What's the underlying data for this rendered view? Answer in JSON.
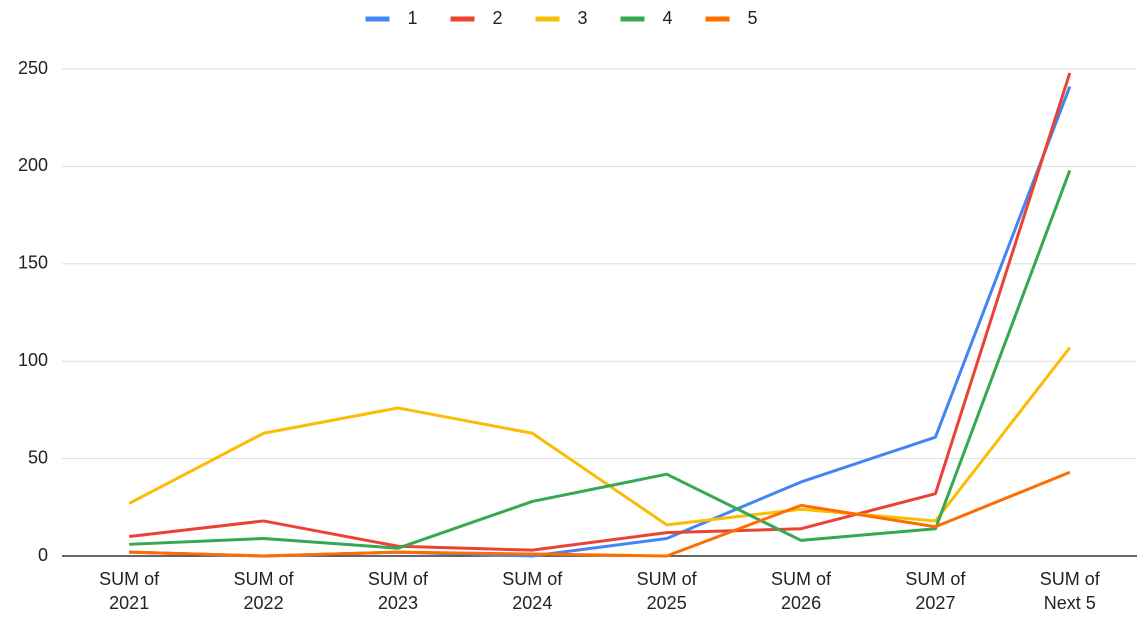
{
  "chart_data": {
    "type": "line",
    "categories": [
      "SUM of 2021",
      "SUM of 2022",
      "SUM of 2023",
      "SUM of 2024",
      "SUM of 2025",
      "SUM of 2026",
      "SUM of 2027",
      "SUM of Next 5"
    ],
    "series": [
      {
        "name": "1",
        "color": "#4285f4",
        "values": [
          2,
          0,
          2,
          0,
          9,
          38,
          61,
          241
        ]
      },
      {
        "name": "2",
        "color": "#ea4335",
        "values": [
          10,
          18,
          5,
          3,
          12,
          14,
          32,
          248
        ]
      },
      {
        "name": "3",
        "color": "#fbbc04",
        "values": [
          27,
          63,
          76,
          63,
          16,
          24,
          18,
          107
        ]
      },
      {
        "name": "4",
        "color": "#34a853",
        "values": [
          6,
          9,
          4,
          28,
          42,
          8,
          14,
          198
        ]
      },
      {
        "name": "5",
        "color": "#ff6d01",
        "values": [
          2,
          0,
          2,
          1,
          0,
          26,
          15,
          43
        ]
      }
    ],
    "ylim": [
      0,
      250
    ],
    "yticks": [
      0,
      50,
      100,
      150,
      200,
      250
    ],
    "grid": true,
    "legend": "top"
  }
}
